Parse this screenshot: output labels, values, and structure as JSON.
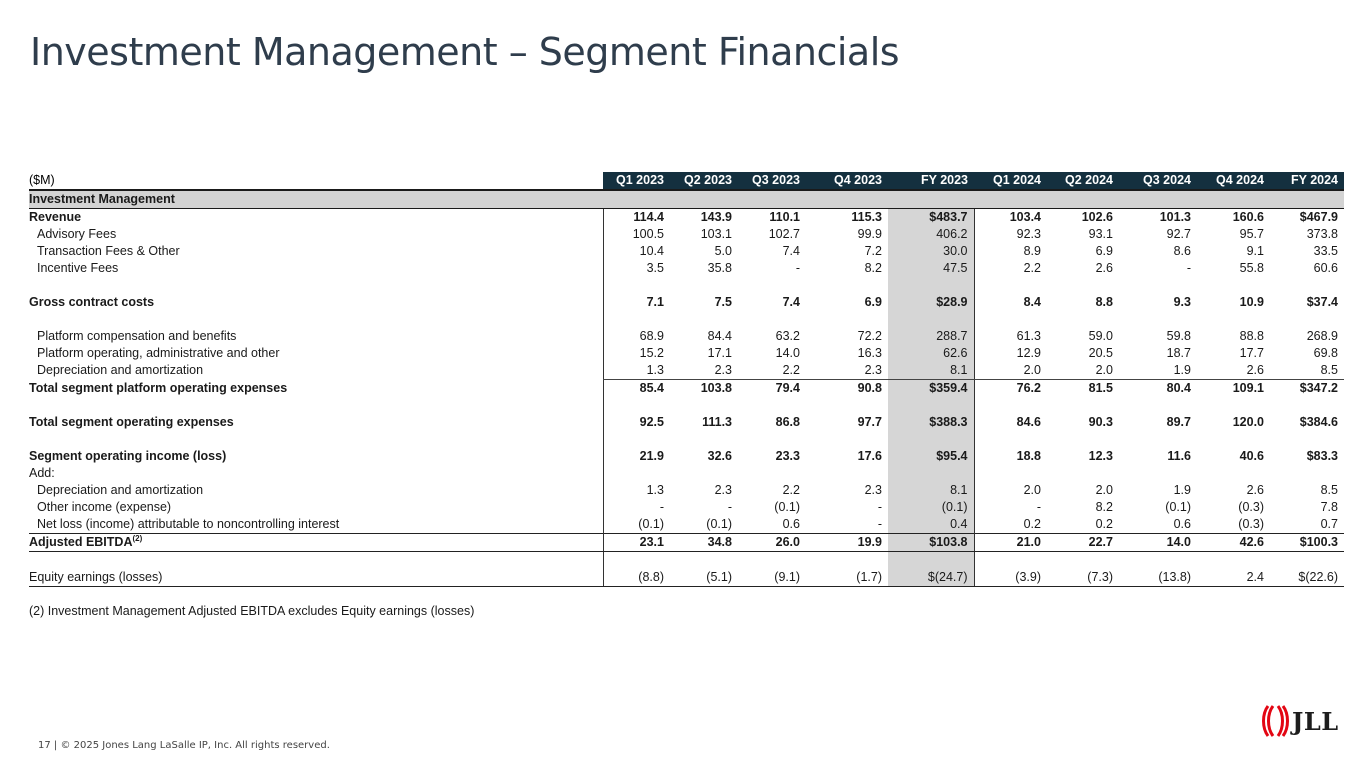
{
  "title": "Investment Management – Segment Financials",
  "units_label": "($M)",
  "columns": [
    "Q1 2023",
    "Q2 2023",
    "Q3 2023",
    "Q4 2023",
    "FY 2023",
    "Q1 2024",
    "Q2 2024",
    "Q3 2024",
    "Q4 2024",
    "FY 2024"
  ],
  "section_label": "Investment Management",
  "rows": {
    "revenue": {
      "label": "Revenue",
      "values": [
        "114.4",
        "143.9",
        "110.1",
        "115.3",
        "$483.7",
        "103.4",
        "102.6",
        "101.3",
        "160.6",
        "$467.9"
      ]
    },
    "advisory": {
      "label": "Advisory Fees",
      "values": [
        "100.5",
        "103.1",
        "102.7",
        "99.9",
        "406.2",
        "92.3",
        "93.1",
        "92.7",
        "95.7",
        "373.8"
      ]
    },
    "transaction": {
      "label": "Transaction Fees & Other",
      "values": [
        "10.4",
        "5.0",
        "7.4",
        "7.2",
        "30.0",
        "8.9",
        "6.9",
        "8.6",
        "9.1",
        "33.5"
      ]
    },
    "incentive": {
      "label": "Incentive Fees",
      "values": [
        "3.5",
        "35.8",
        "-",
        "8.2",
        "47.5",
        "2.2",
        "2.6",
        "-",
        "55.8",
        "60.6"
      ]
    },
    "gross": {
      "label": "Gross contract costs",
      "values": [
        "7.1",
        "7.5",
        "7.4",
        "6.9",
        "$28.9",
        "8.4",
        "8.8",
        "9.3",
        "10.9",
        "$37.4"
      ]
    },
    "platform_comp": {
      "label": "Platform compensation and benefits",
      "values": [
        "68.9",
        "84.4",
        "63.2",
        "72.2",
        "288.7",
        "61.3",
        "59.0",
        "59.8",
        "88.8",
        "268.9"
      ]
    },
    "platform_op": {
      "label": "Platform operating, administrative and other",
      "values": [
        "15.2",
        "17.1",
        "14.0",
        "16.3",
        "62.6",
        "12.9",
        "20.5",
        "18.7",
        "17.7",
        "69.8"
      ]
    },
    "dep1": {
      "label": "Depreciation and amortization",
      "values": [
        "1.3",
        "2.3",
        "2.2",
        "2.3",
        "8.1",
        "2.0",
        "2.0",
        "1.9",
        "2.6",
        "8.5"
      ]
    },
    "total_platform": {
      "label": "Total segment platform operating expenses",
      "values": [
        "85.4",
        "103.8",
        "79.4",
        "90.8",
        "$359.4",
        "76.2",
        "81.5",
        "80.4",
        "109.1",
        "$347.2"
      ]
    },
    "total_opex": {
      "label": "Total segment operating expenses",
      "values": [
        "92.5",
        "111.3",
        "86.8",
        "97.7",
        "$388.3",
        "84.6",
        "90.3",
        "89.7",
        "120.0",
        "$384.6"
      ]
    },
    "seg_income": {
      "label": "Segment operating income (loss)",
      "values": [
        "21.9",
        "32.6",
        "23.3",
        "17.6",
        "$95.4",
        "18.8",
        "12.3",
        "11.6",
        "40.6",
        "$83.3"
      ]
    },
    "add": {
      "label": "Add:"
    },
    "dep2": {
      "label": "Depreciation and amortization",
      "values": [
        "1.3",
        "2.3",
        "2.2",
        "2.3",
        "8.1",
        "2.0",
        "2.0",
        "1.9",
        "2.6",
        "8.5"
      ]
    },
    "other_income": {
      "label": "Other income (expense)",
      "values": [
        "-",
        "-",
        "(0.1)",
        "-",
        "(0.1)",
        "-",
        "8.2",
        "(0.1)",
        "(0.3)",
        "7.8"
      ]
    },
    "net_loss": {
      "label": "Net loss (income) attributable to noncontrolling interest",
      "values": [
        "(0.1)",
        "(0.1)",
        "0.6",
        "-",
        "0.4",
        "0.2",
        "0.2",
        "0.6",
        "(0.3)",
        "0.7"
      ]
    },
    "ebitda": {
      "label": "Adjusted EBITDA",
      "sup": "(2)",
      "values": [
        "23.1",
        "34.8",
        "26.0",
        "19.9",
        "$103.8",
        "21.0",
        "22.7",
        "14.0",
        "42.6",
        "$100.3"
      ]
    },
    "equity": {
      "label": "Equity earnings (losses)",
      "values": [
        "(8.8)",
        "(5.1)",
        "(9.1)",
        "(1.7)",
        "$(24.7)",
        "(3.9)",
        "(7.3)",
        "(13.8)",
        "2.4",
        "$(22.6)"
      ]
    }
  },
  "footnote": "(2) Investment Management Adjusted EBITDA excludes Equity earnings (losses)",
  "footer": "17  |  © 2025 Jones Lang LaSalle IP, Inc. All rights reserved.",
  "logo": {
    "text": "JLL",
    "color": "#e30613",
    "icon": "jll-bars-icon"
  }
}
